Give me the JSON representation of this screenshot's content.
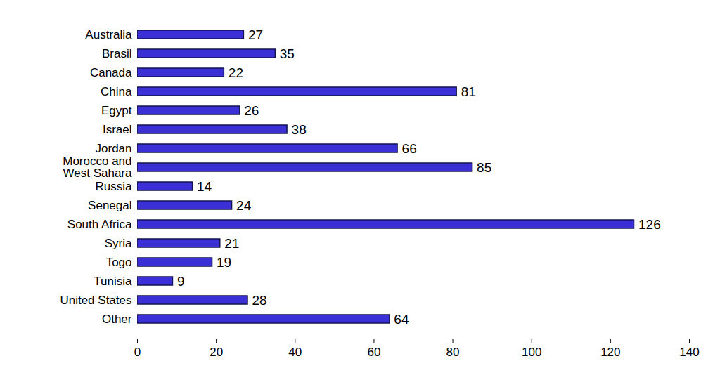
{
  "chart_data": {
    "type": "bar",
    "orientation": "horizontal",
    "categories": [
      "Australia",
      "Brasil",
      "Canada",
      "China",
      "Egypt",
      "Israel",
      "Jordan",
      "Morocco and\nWest Sahara",
      "Russia",
      "Senegal",
      "South Africa",
      "Syria",
      "Togo",
      "Tunisia",
      "United States",
      "Other"
    ],
    "values": [
      27,
      35,
      22,
      81,
      26,
      38,
      66,
      85,
      14,
      24,
      126,
      21,
      19,
      9,
      28,
      64
    ],
    "color": "#3a30d6",
    "xlim": [
      0,
      140
    ],
    "xticks": [
      0,
      20,
      40,
      60,
      80,
      100,
      120,
      140
    ],
    "grid": false,
    "data_labels": true
  }
}
